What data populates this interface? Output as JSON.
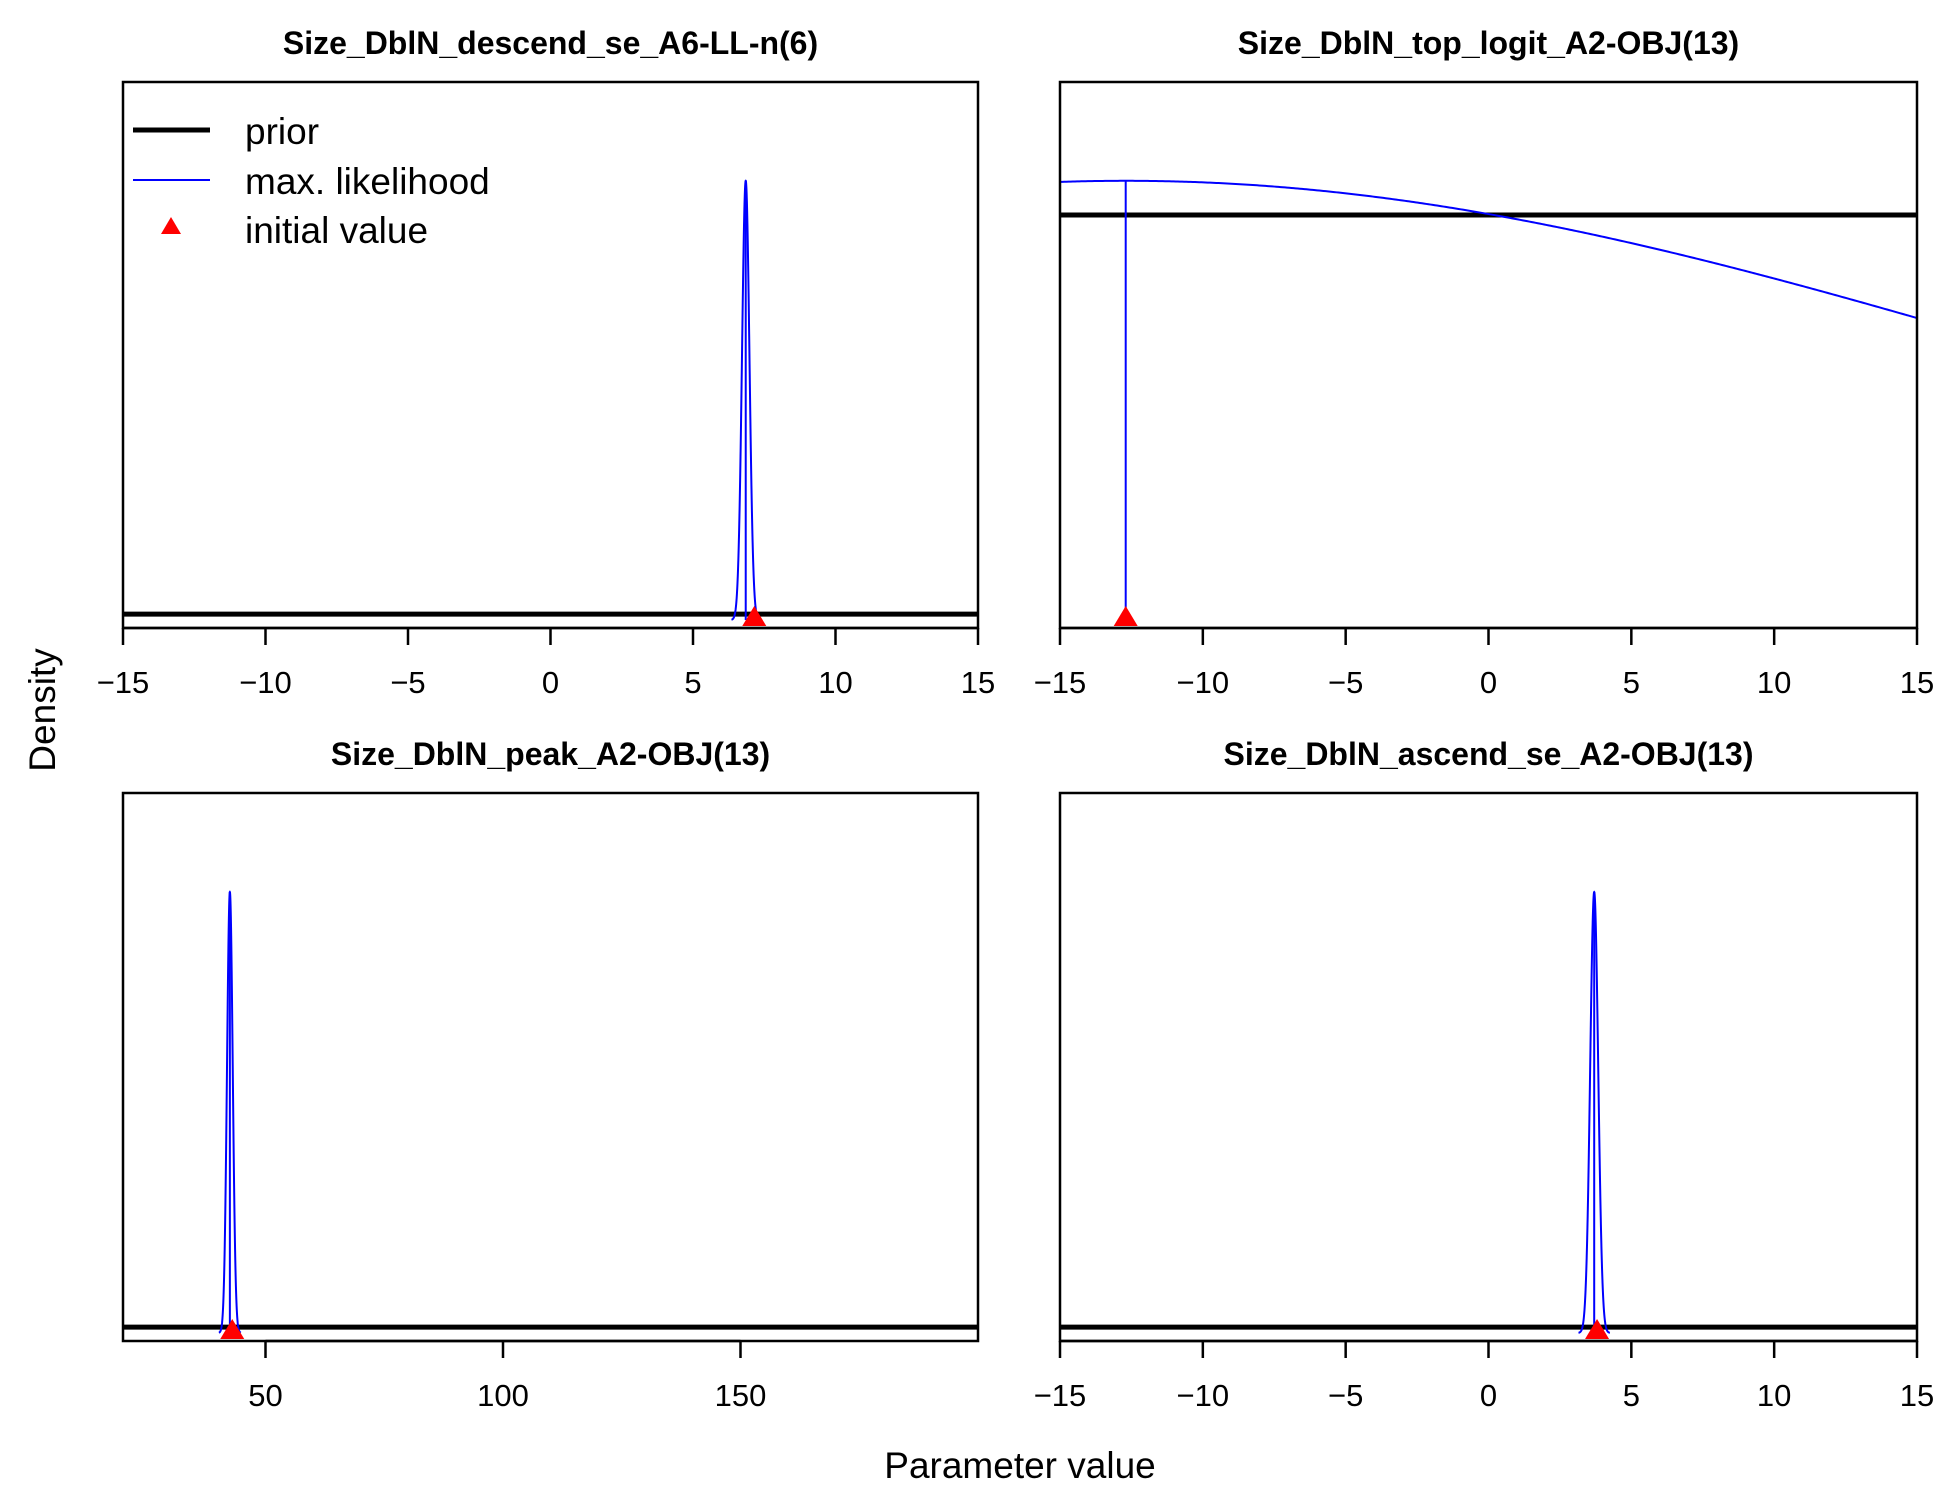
{
  "figure": {
    "xlabel": "Parameter value",
    "ylabel": "Density"
  },
  "legend": {
    "placement": "top-left of first panel",
    "items": [
      {
        "label": "prior",
        "type": "line",
        "color": "#000000",
        "weight": "thick"
      },
      {
        "label": "max. likelihood",
        "type": "line",
        "color": "#0000FF",
        "weight": "thin"
      },
      {
        "label": "initial value",
        "type": "marker",
        "marker": "triangle",
        "color": "#FF0000"
      }
    ]
  },
  "chart_data": [
    {
      "type": "line",
      "title": "Size_DblN_descend_se_A6-LL-n(6)",
      "xlim": [
        -15,
        15
      ],
      "xticks": [
        -15,
        -10,
        -5,
        0,
        5,
        10,
        15
      ],
      "ylim": [
        0,
        1
      ],
      "prior": {
        "kind": "flat",
        "y": 0.012
      },
      "max_likelihood": {
        "kind": "normal",
        "mean": 6.85,
        "sd": 0.13,
        "peak_y": 0.9,
        "curve_from": 6.35,
        "curve_to": 7.35,
        "vline_x": 6.85
      },
      "initial_value": 7.15
    },
    {
      "type": "line",
      "title": "Size_DblN_top_logit_A2-OBJ(13)",
      "xlim": [
        -15,
        15
      ],
      "xticks": [
        -15,
        -10,
        -5,
        0,
        5,
        10,
        15
      ],
      "ylim": [
        0,
        1
      ],
      "prior": {
        "kind": "flat",
        "y": 0.83
      },
      "max_likelihood": {
        "kind": "normal",
        "mean": -12.7,
        "sd": 32.0,
        "peak_y": 0.9,
        "curve_from": -15,
        "curve_to": 15,
        "vline_x": -12.7
      },
      "initial_value": -12.7
    },
    {
      "type": "line",
      "title": "Size_DblN_peak_A2-OBJ(13)",
      "xlim": [
        20,
        200
      ],
      "xticks": [
        50,
        100,
        150
      ],
      "ylim": [
        0,
        1
      ],
      "prior": {
        "kind": "flat",
        "y": 0.012
      },
      "max_likelihood": {
        "kind": "normal",
        "mean": 42.5,
        "sd": 0.6,
        "peak_y": 0.9,
        "curve_from": 40.2,
        "curve_to": 44.8,
        "vline_x": 42.5
      },
      "initial_value": 43.0
    },
    {
      "type": "line",
      "title": "Size_DblN_ascend_se_A2-OBJ(13)",
      "xlim": [
        -15,
        15
      ],
      "xticks": [
        -15,
        -10,
        -5,
        0,
        5,
        10,
        15
      ],
      "ylim": [
        0,
        1
      ],
      "prior": {
        "kind": "flat",
        "y": 0.012
      },
      "max_likelihood": {
        "kind": "normal",
        "mean": 3.7,
        "sd": 0.14,
        "peak_y": 0.9,
        "curve_from": 3.15,
        "curve_to": 4.25,
        "vline_x": 3.7
      },
      "initial_value": 3.8
    }
  ]
}
